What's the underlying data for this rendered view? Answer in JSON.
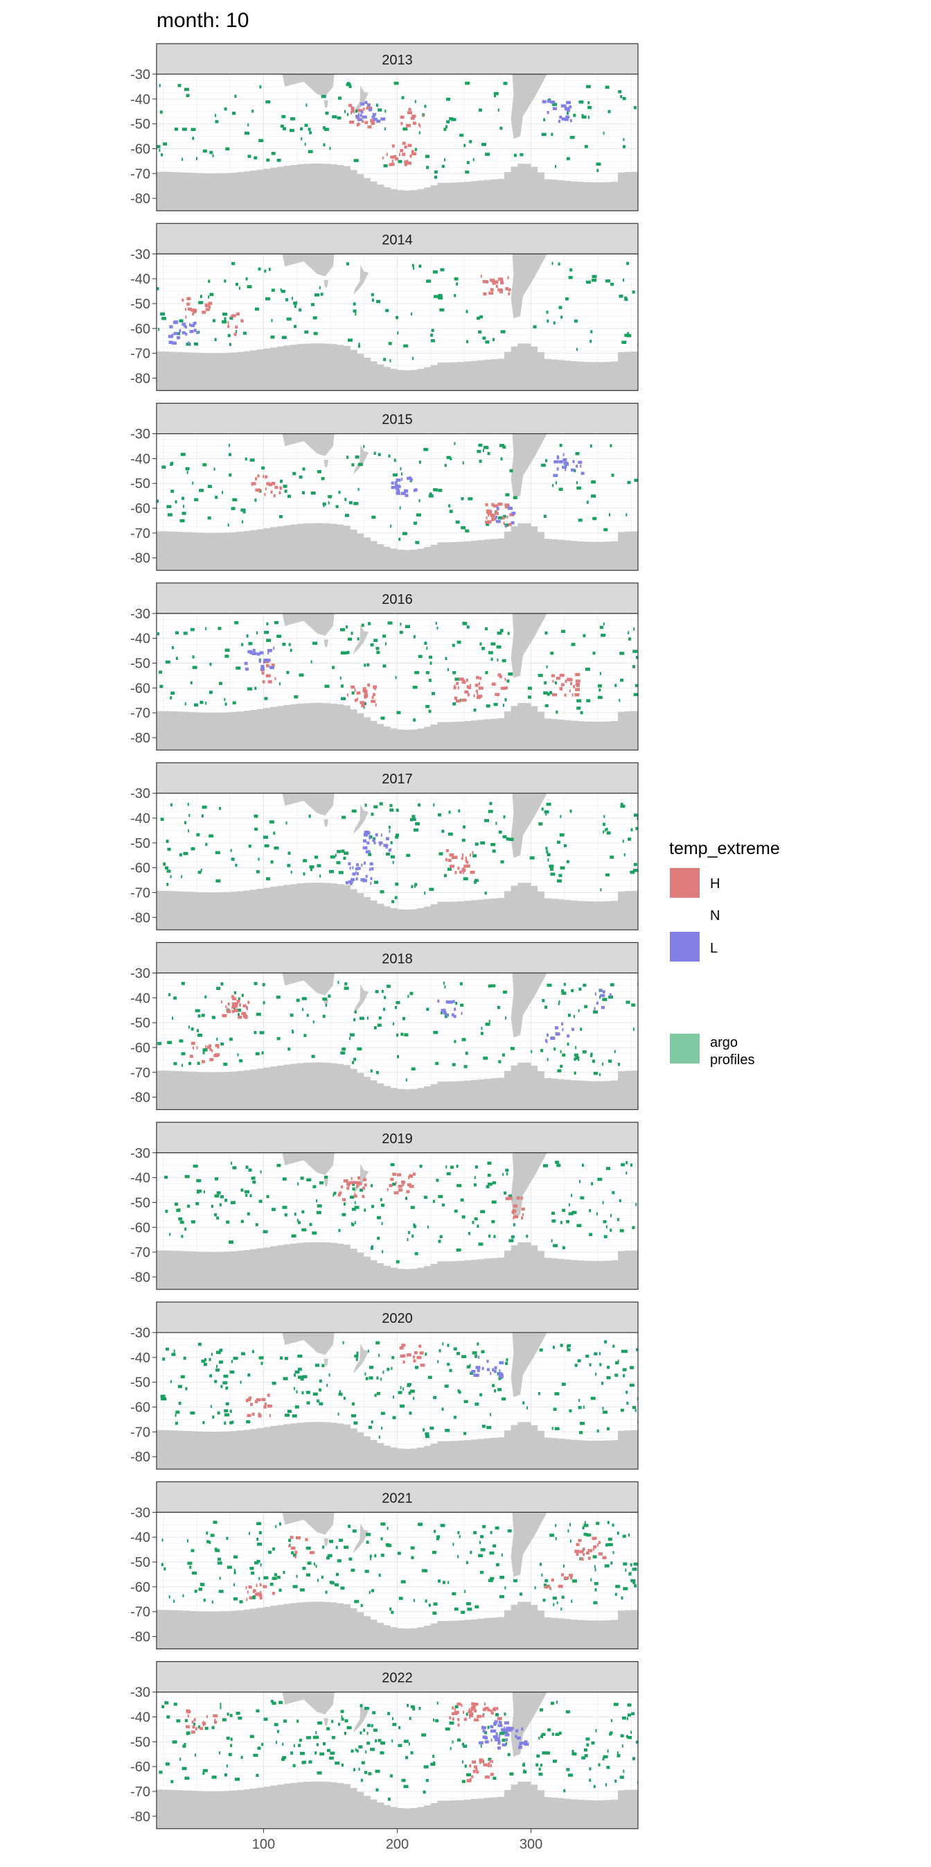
{
  "chart_data": {
    "type": "heatmap",
    "title": "month: 10",
    "facet_by": "year",
    "panels": [
      "2013",
      "2014",
      "2015",
      "2016",
      "2017",
      "2018",
      "2019",
      "2020",
      "2021",
      "2022"
    ],
    "x_ticks": [
      100,
      200,
      300
    ],
    "y_ticks": [
      -30,
      -40,
      -50,
      -60,
      -70,
      -80
    ],
    "xlim": [
      20,
      380
    ],
    "ylim": [
      -85,
      -30
    ],
    "grid": true,
    "colors": {
      "H": "#e07b7b",
      "L": "#8080e6",
      "argo_profiles": "#1aa060",
      "land": "#c8c8c8",
      "strip": "#d9d9d9"
    },
    "legend": {
      "title": "temp_extreme",
      "position": "right",
      "items": [
        {
          "key": "H",
          "label": "H",
          "color": "#e07b7b"
        },
        {
          "key": "N",
          "label": "N",
          "color": ""
        },
        {
          "key": "L",
          "label": "L",
          "color": "#8080e6"
        },
        {
          "key": "argo",
          "label_line1": "argo",
          "label_line2": "profiles",
          "color": "#80c8a0"
        }
      ]
    }
  }
}
